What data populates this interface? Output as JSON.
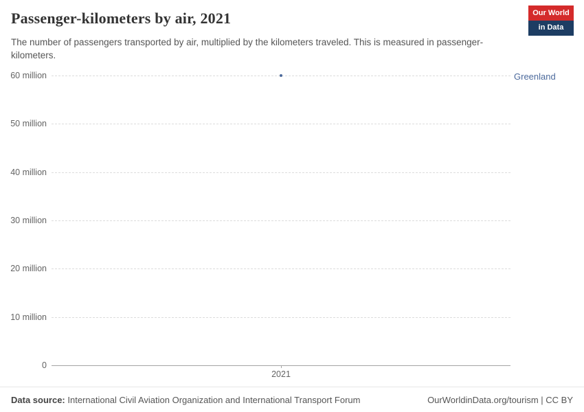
{
  "header": {
    "title": "Passenger-kilometers by air, 2021",
    "subtitle": "The number of passengers transported by air, multiplied by the kilometers traveled. This is measured in passenger-kilometers.",
    "logo": {
      "line1": "Our World",
      "line2": "in Data"
    }
  },
  "chart_data": {
    "type": "scatter",
    "title": "Passenger-kilometers by air, 2021",
    "categories": [
      2021
    ],
    "series": [
      {
        "name": "Greenland",
        "year": 2021,
        "value": 60000000
      }
    ],
    "ylim": [
      0,
      60000000
    ],
    "yticks": [
      {
        "value": 0,
        "label": "0"
      },
      {
        "value": 10000000,
        "label": "10 million"
      },
      {
        "value": 20000000,
        "label": "20 million"
      },
      {
        "value": 30000000,
        "label": "30 million"
      },
      {
        "value": 40000000,
        "label": "40 million"
      },
      {
        "value": 50000000,
        "label": "50 million"
      },
      {
        "value": 60000000,
        "label": "60 million"
      }
    ],
    "xticks": [
      {
        "value": 2021,
        "label": "2021"
      }
    ],
    "grid": "horizontal-dashed",
    "legend_position": "entity-label-right"
  },
  "footer": {
    "datasource_label": "Data source:",
    "datasource_text": "International Civil Aviation Organization and International Transport Forum",
    "right_text": "OurWorldinData.org/tourism | CC BY"
  },
  "colors": {
    "accent": "#4C6A9C",
    "grid": "#dcdcdc",
    "axis": "#a3a3a3",
    "logo_navy": "#1d3d63",
    "logo_red": "#d42b2b"
  }
}
